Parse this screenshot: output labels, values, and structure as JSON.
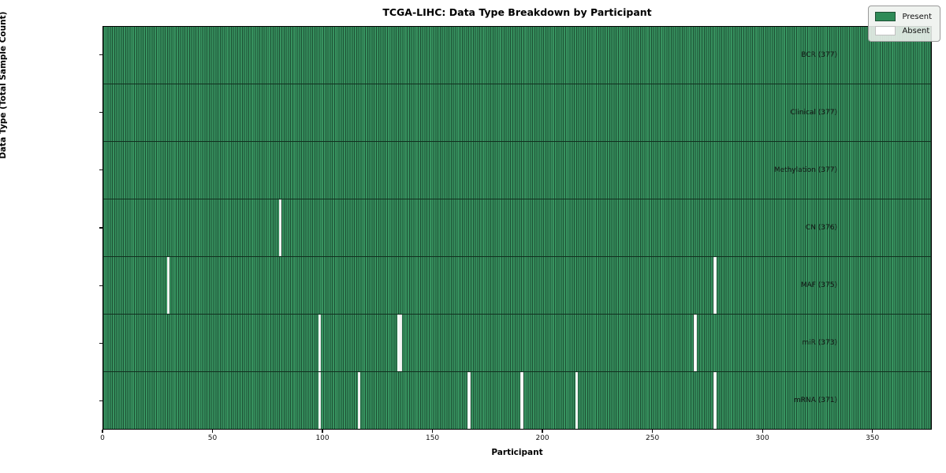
{
  "title": "TCGA-LIHC: Data Type Breakdown by Participant",
  "axes": {
    "x_label": "Participant",
    "y_label": "Data Type (Total Sample Count)",
    "x_ticks": [
      0,
      50,
      100,
      150,
      200,
      250,
      300,
      350
    ]
  },
  "legend": {
    "items": [
      {
        "label": "Present",
        "color": "#2e8b57"
      },
      {
        "label": "Absent",
        "color": "#ffffff"
      }
    ]
  },
  "chart_data": {
    "type": "heatmap",
    "title": "TCGA-LIHC: Data Type Breakdown by Participant",
    "xlabel": "Participant",
    "ylabel": "Data Type (Total Sample Count)",
    "x_range": [
      0,
      377
    ],
    "n_participants": 377,
    "legend_position": "upper right",
    "colors": {
      "present": "#2e8b57",
      "present_cell_edge": "#1d5034",
      "absent": "#ffffff",
      "row_divider": "#11301f"
    },
    "rows": [
      {
        "label": "BCR (377)",
        "data_type": "BCR",
        "present_count": 377,
        "absent_participants": []
      },
      {
        "label": "Clinical (377)",
        "data_type": "Clinical",
        "present_count": 377,
        "absent_participants": []
      },
      {
        "label": "Methylation (377)",
        "data_type": "Methylation",
        "present_count": 377,
        "absent_participants": []
      },
      {
        "label": "CN (376)",
        "data_type": "CN",
        "present_count": 376,
        "absent_participants": [
          80
        ]
      },
      {
        "label": "MAF (375)",
        "data_type": "MAF",
        "present_count": 375,
        "absent_participants": [
          29,
          278
        ]
      },
      {
        "label": "miR (373)",
        "data_type": "miR",
        "present_count": 373,
        "absent_participants": [
          98,
          134,
          135,
          269
        ]
      },
      {
        "label": "mRNA (371)",
        "data_type": "mRNA",
        "present_count": 371,
        "absent_participants": [
          98,
          116,
          166,
          190,
          215,
          278
        ]
      }
    ]
  }
}
